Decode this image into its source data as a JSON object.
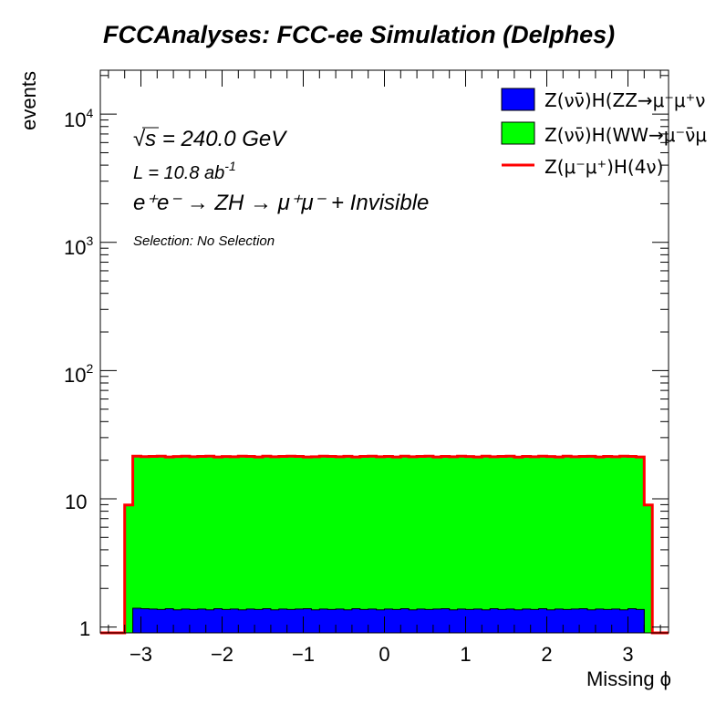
{
  "title": "FCCAnalyses: FCC-ee Simulation (Delphes)",
  "annotations": {
    "sqrt_s_prefix": "√s",
    "sqrt_s_rest": " = 240.0 GeV",
    "lumi_base": "L = 10.8 ab",
    "lumi_exp": "-1",
    "process": "e⁺e⁻ → ZH → μ⁺μ⁻ + Invisible",
    "selection": "Selection: No Selection"
  },
  "axes": {
    "xlabel": "Missing ϕ",
    "ylabel": "events",
    "x_ticks": [
      "−3",
      "−2",
      "−1",
      "0",
      "1",
      "2",
      "3"
    ],
    "y_tick_10": "10",
    "y_tick_1": "1"
  },
  "colors": {
    "zz_fill": "#0000ff",
    "ww_fill": "#00ff00",
    "signal_line": "#ff0000",
    "frame": "#000000"
  },
  "chart_data": {
    "type": "bar",
    "stacked": true,
    "log_y": true,
    "xlim": [
      -3.5,
      3.5
    ],
    "ylim": [
      0.9,
      22000
    ],
    "bins": {
      "edges": [
        -3.5,
        -3.3,
        -3.2,
        -3.1,
        -3.0,
        -2.9,
        -2.8,
        -2.7,
        -2.6,
        -2.5,
        -2.4,
        -2.3,
        -2.2,
        -2.1,
        -2.0,
        -1.9,
        -1.8,
        -1.7,
        -1.6,
        -1.5,
        -1.4,
        -1.3,
        -1.2,
        -1.1,
        -1.0,
        -0.9,
        -0.8,
        -0.7,
        -0.6,
        -0.5,
        -0.4,
        -0.3,
        -0.2,
        -0.1,
        0.0,
        0.1,
        0.2,
        0.3,
        0.4,
        0.5,
        0.6,
        0.7,
        0.8,
        0.9,
        1.0,
        1.1,
        1.2,
        1.3,
        1.4,
        1.5,
        1.6,
        1.7,
        1.8,
        1.9,
        2.0,
        2.1,
        2.2,
        2.3,
        2.4,
        2.5,
        2.6,
        2.7,
        2.8,
        2.9,
        3.0,
        3.1,
        3.2,
        3.3,
        3.5
      ]
    },
    "series": [
      {
        "name": "Z(νν̄)H(ZZ→μ⁻μ⁺ν",
        "values": [
          0,
          0,
          0.55,
          1.4,
          1.39,
          1.38,
          1.37,
          1.39,
          1.36,
          1.38,
          1.37,
          1.38,
          1.36,
          1.39,
          1.37,
          1.38,
          1.36,
          1.38,
          1.37,
          1.39,
          1.36,
          1.38,
          1.37,
          1.38,
          1.39,
          1.36,
          1.38,
          1.37,
          1.38,
          1.36,
          1.39,
          1.37,
          1.38,
          1.36,
          1.38,
          1.37,
          1.39,
          1.36,
          1.38,
          1.37,
          1.38,
          1.39,
          1.36,
          1.38,
          1.37,
          1.38,
          1.36,
          1.39,
          1.37,
          1.38,
          1.36,
          1.38,
          1.37,
          1.39,
          1.36,
          1.38,
          1.37,
          1.38,
          1.39,
          1.36,
          1.38,
          1.37,
          1.38,
          1.36,
          1.39,
          1.37,
          0.55,
          0
        ]
      },
      {
        "name": "Z(νν̄)H(WW→μ⁻ν̄μ",
        "values": [
          0,
          0,
          8.3,
          19.9,
          19.7,
          19.8,
          19.9,
          19.6,
          19.8,
          19.9,
          19.7,
          19.8,
          19.9,
          19.6,
          19.8,
          19.7,
          19.9,
          19.8,
          19.6,
          19.9,
          19.7,
          19.8,
          19.9,
          19.8,
          19.6,
          19.7,
          19.9,
          19.8,
          19.7,
          19.9,
          19.6,
          19.8,
          19.9,
          19.7,
          19.8,
          19.6,
          19.9,
          19.7,
          19.8,
          19.9,
          19.6,
          19.8,
          19.7,
          19.9,
          19.8,
          19.6,
          19.9,
          19.7,
          19.8,
          19.9,
          19.6,
          19.8,
          19.7,
          19.9,
          19.8,
          19.6,
          19.9,
          19.7,
          19.8,
          19.9,
          19.6,
          19.8,
          19.7,
          19.9,
          19.8,
          19.6,
          8.3,
          0
        ]
      },
      {
        "name": "Z(μ⁻μ⁺)H(4ν)",
        "values": [
          0,
          0,
          0.1,
          0.21,
          0.21,
          0.2,
          0.21,
          0.21,
          0.2,
          0.21,
          0.21,
          0.2,
          0.21,
          0.21,
          0.2,
          0.21,
          0.21,
          0.2,
          0.21,
          0.21,
          0.2,
          0.21,
          0.21,
          0.2,
          0.21,
          0.21,
          0.2,
          0.21,
          0.21,
          0.2,
          0.21,
          0.21,
          0.2,
          0.21,
          0.21,
          0.2,
          0.21,
          0.21,
          0.2,
          0.21,
          0.21,
          0.2,
          0.21,
          0.21,
          0.2,
          0.21,
          0.21,
          0.2,
          0.21,
          0.21,
          0.2,
          0.21,
          0.21,
          0.2,
          0.21,
          0.21,
          0.2,
          0.21,
          0.21,
          0.2,
          0.21,
          0.21,
          0.2,
          0.21,
          0.21,
          0.2,
          0.1,
          0
        ]
      }
    ],
    "xlabel": "Missing ϕ",
    "ylabel": "events",
    "title": "FCCAnalyses: FCC-ee Simulation (Delphes)",
    "legend_position": "top-right",
    "grid": false
  }
}
